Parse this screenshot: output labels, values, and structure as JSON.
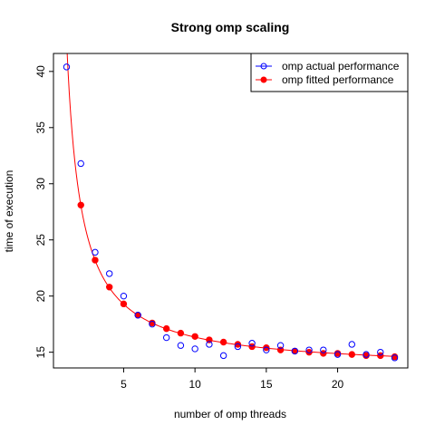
{
  "chart_data": {
    "type": "scatter",
    "title": "Strong omp scaling",
    "xlabel": "number of omp threads",
    "ylabel": "time of execution",
    "xlim": [
      0.08,
      24.92
    ],
    "ylim": [
      13.6,
      41.6
    ],
    "xticks": [
      5,
      10,
      15,
      20
    ],
    "yticks": [
      15,
      20,
      25,
      30,
      35,
      40
    ],
    "grid": false,
    "legend_position": "top-right",
    "curve_model": {
      "a": 13.41,
      "b": 29.31
    },
    "series": [
      {
        "name": "omp actual performance",
        "marker": "open-circle",
        "color": "#0000ff",
        "x": [
          1,
          2,
          3,
          4,
          5,
          6,
          7,
          8,
          9,
          10,
          11,
          12,
          13,
          14,
          15,
          16,
          17,
          18,
          19,
          20,
          21,
          22,
          23,
          24
        ],
        "y": [
          40.4,
          31.8,
          23.9,
          22.0,
          20.0,
          18.3,
          17.5,
          16.3,
          15.6,
          15.3,
          15.7,
          14.7,
          15.5,
          15.8,
          15.2,
          15.6,
          15.1,
          15.2,
          15.2,
          14.8,
          15.7,
          14.8,
          15.0,
          14.5
        ]
      },
      {
        "name": "omp fitted performance",
        "marker": "filled-circle",
        "color": "#ff0000",
        "line": "solid",
        "x": [
          2,
          3,
          4,
          5,
          6,
          7,
          8,
          9,
          10,
          11,
          12,
          13,
          14,
          15,
          16,
          17,
          18,
          19,
          20,
          21,
          22,
          23,
          24
        ],
        "y": [
          28.1,
          23.2,
          20.8,
          19.3,
          18.3,
          17.6,
          17.1,
          16.7,
          16.4,
          16.1,
          15.9,
          15.7,
          15.5,
          15.4,
          15.2,
          15.1,
          15.0,
          14.9,
          14.9,
          14.8,
          14.7,
          14.7,
          14.6
        ]
      }
    ]
  }
}
